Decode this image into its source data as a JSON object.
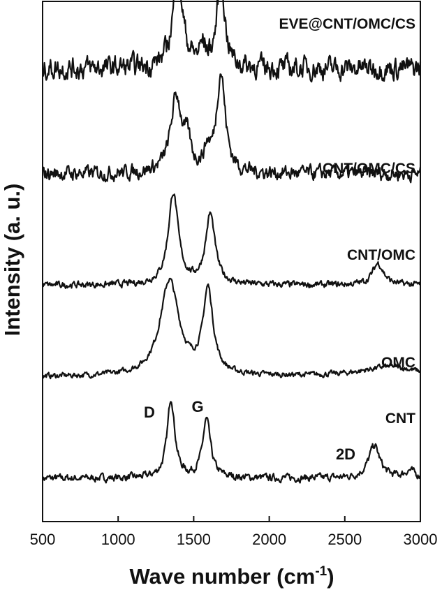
{
  "chart_data": {
    "type": "line",
    "title": "",
    "xlabel": "Wave number (cm",
    "xlabel_sup": "-1",
    "xlabel_close": ")",
    "ylabel": "Intensity (a. u.)",
    "xlim": [
      500,
      3000
    ],
    "x_ticks": [
      500,
      1000,
      1500,
      2000,
      2500,
      3000
    ],
    "y_ticks_shown": false,
    "grid": false,
    "series": [
      {
        "name": "CNT",
        "offset": 0.0,
        "noise": 0.08,
        "baseline": 0.0,
        "peaks": [
          {
            "center": 1350,
            "height": 2.0,
            "width": 30
          },
          {
            "center": 1585,
            "height": 1.45,
            "width": 32
          },
          {
            "center": 2695,
            "height": 0.82,
            "width": 45
          },
          {
            "center": 2930,
            "height": 0.18,
            "width": 40
          }
        ]
      },
      {
        "name": "OMC",
        "offset": 2.4,
        "noise": 0.06,
        "baseline": 0.15,
        "peaks": [
          {
            "center": 1340,
            "height": 2.4,
            "width": 75
          },
          {
            "center": 1595,
            "height": 2.1,
            "width": 40
          },
          {
            "center": 2800,
            "height": 0.25,
            "width": 220
          }
        ]
      },
      {
        "name": "CNT/OMC",
        "offset": 4.85,
        "noise": 0.07,
        "baseline": 0.0,
        "peaks": [
          {
            "center": 1365,
            "height": 2.3,
            "width": 40
          },
          {
            "center": 1610,
            "height": 1.75,
            "width": 38
          },
          {
            "center": 2720,
            "height": 0.55,
            "width": 45
          }
        ]
      },
      {
        "name": "CNT/OMC/CS",
        "offset": 7.55,
        "noise": 0.16,
        "baseline": 0.1,
        "peaks": [
          {
            "center": 1385,
            "height": 1.9,
            "width": 45
          },
          {
            "center": 1460,
            "height": 0.6,
            "width": 25
          },
          {
            "center": 1590,
            "height": 0.45,
            "width": 25
          },
          {
            "center": 1680,
            "height": 2.5,
            "width": 35
          }
        ]
      },
      {
        "name": "EVE@CNT/OMC/CS",
        "offset": 10.15,
        "noise": 0.24,
        "baseline": 0.15,
        "peaks": [
          {
            "center": 1395,
            "height": 2.3,
            "width": 40
          },
          {
            "center": 1560,
            "height": 0.45,
            "width": 25
          },
          {
            "center": 1680,
            "height": 2.3,
            "width": 30
          }
        ]
      }
    ],
    "annotations": [
      "D",
      "G",
      "2D"
    ]
  }
}
